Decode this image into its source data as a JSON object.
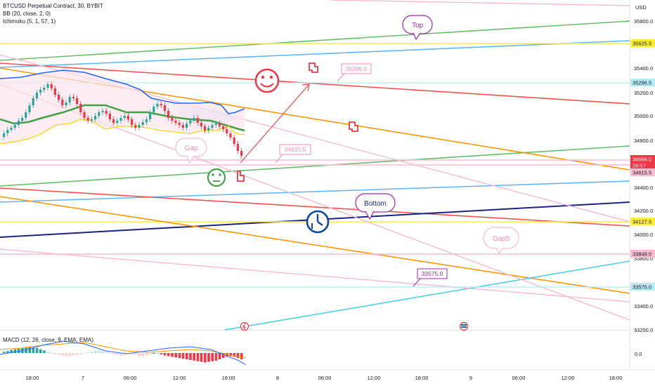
{
  "legend": {
    "symbol": "BTCUSD Perpetual Contract, 30, BYBIT",
    "bb": "BB (20, close, 2, 0)",
    "ichimoku": "Ichimoku (5, 1, 57, 1)"
  },
  "macd_label": "MACD (12, 26, close, 9, EMA, EMA)",
  "currency": "USD",
  "price_axis": {
    "ticks": [
      "35800.0",
      "35400.0",
      "35200.0",
      "35000.0",
      "34800.0",
      "34400.0",
      "34200.0",
      "34000.0",
      "33800.0",
      "33400.0",
      "33200.0"
    ],
    "macd_tick": "0.0"
  },
  "price_tags": [
    {
      "label": "35625.5",
      "color": "#ffeb3b",
      "text_color": "#131722"
    },
    {
      "label": "35296.5",
      "color": "#b2ebf2",
      "text_color": "#131722"
    },
    {
      "label": "34666.0",
      "color": "#f23645",
      "text_color": "#ffffff"
    },
    {
      "label": "29:57",
      "color": "#f23645",
      "text_color": "#ffffff"
    },
    {
      "label": "34615.5",
      "color": "#f8bbd0",
      "text_color": "#131722"
    },
    {
      "label": "34127.5",
      "color": "#ffeb3b",
      "text_color": "#131722"
    },
    {
      "label": "33849.0",
      "color": "#f8bbd0",
      "text_color": "#131722"
    },
    {
      "label": "33575.0",
      "color": "#b2ebf2",
      "text_color": "#131722"
    }
  ],
  "time_axis": [
    "18:00",
    "7",
    "06:00",
    "12:00",
    "18:00",
    "8",
    "06:00",
    "12:00",
    "18:00",
    "9",
    "06:00",
    "12:00",
    "18:00"
  ],
  "callouts": {
    "top": "Top",
    "bottom": "Bottom",
    "gap": "Gap",
    "gap5": "Gap5",
    "price_high": "35296.5",
    "price_entry": "34615.5",
    "price_low": "33575.0"
  },
  "colors": {
    "up": "#26a69a",
    "down": "#ef5350",
    "bb_upper": "#2962ff",
    "bb_basis": "#43a047",
    "bb_lower": "#fdd835",
    "callout_purple": "#9c27b0",
    "callout_pink": "#f48fb1"
  },
  "icons": [
    "smiley-face-icon",
    "neutral-face-icon",
    "clock-icon",
    "pointing-hand-icon",
    "lightning-icon",
    "flag-icon"
  ]
}
